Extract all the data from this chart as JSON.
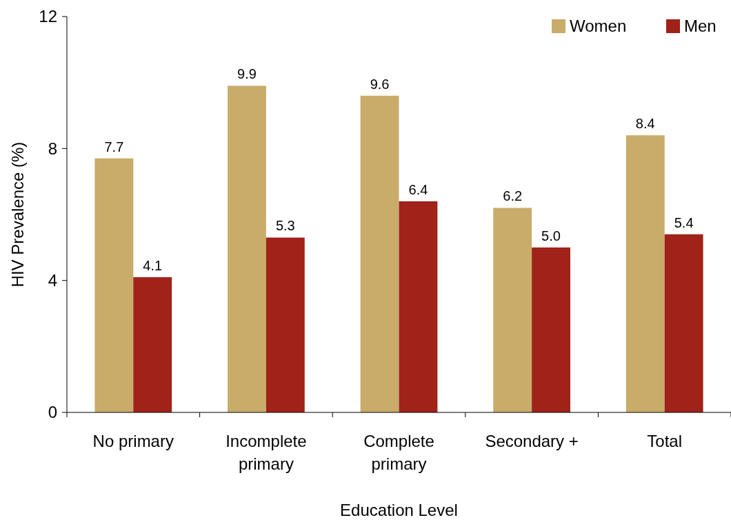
{
  "chart_data": {
    "type": "bar",
    "xlabel": "Education Level",
    "ylabel": "HIV Prevalence (%)",
    "categories": [
      "No primary",
      "Incomplete primary",
      "Complete primary",
      "Secondary +",
      "Total"
    ],
    "series": [
      {
        "name": "Women",
        "color": "#c9ab6a",
        "values": [
          7.7,
          9.9,
          9.6,
          6.2,
          8.4
        ],
        "value_labels": [
          "7.7",
          "9.9",
          "9.6",
          "6.2",
          "8.4"
        ]
      },
      {
        "name": "Men",
        "color": "#a02219",
        "values": [
          4.1,
          5.3,
          6.4,
          5.0,
          5.4
        ],
        "value_labels": [
          "4.1",
          "5.3",
          "6.4",
          "5.0",
          "5.4"
        ]
      }
    ],
    "ylim": [
      0,
      12
    ],
    "yticks": [
      0,
      4,
      8,
      12
    ],
    "legend": "top right",
    "grid": false
  }
}
